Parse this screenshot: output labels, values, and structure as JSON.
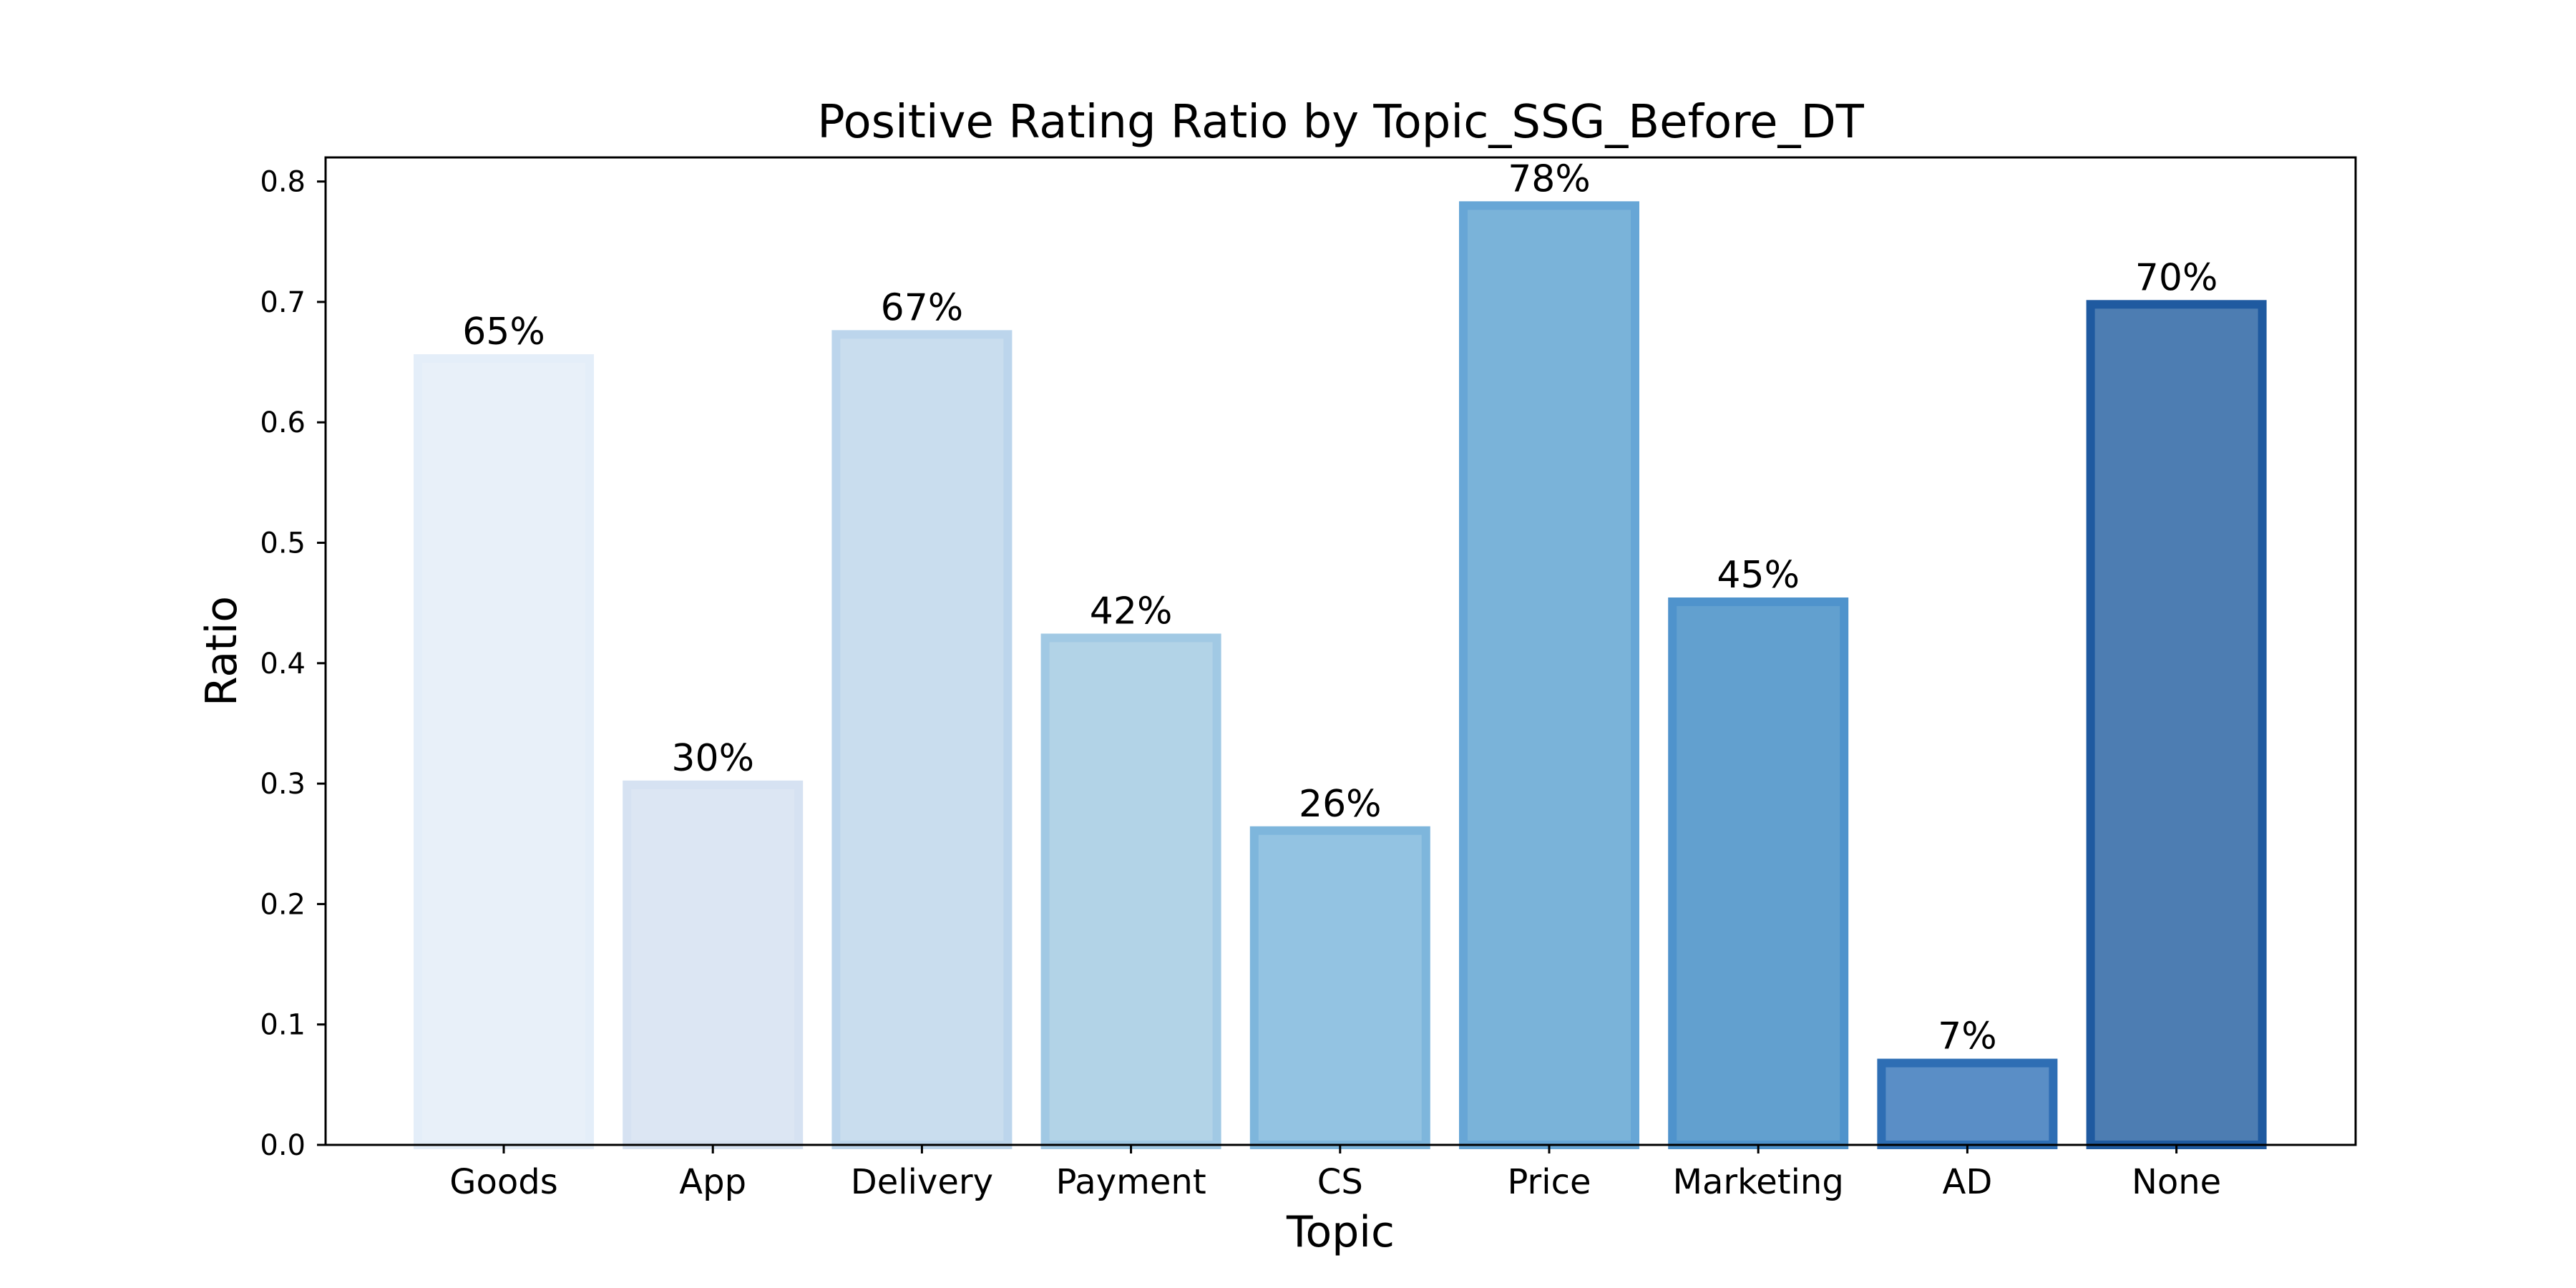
{
  "chart_data": {
    "type": "bar",
    "title": "Positive Rating Ratio by Topic_SSG_Before_DT",
    "xlabel": "Topic",
    "ylabel": "Ratio",
    "categories": [
      "Goods",
      "App",
      "Delivery",
      "Payment",
      "CS",
      "Price",
      "Marketing",
      "AD",
      "None"
    ],
    "values": [
      0.653,
      0.299,
      0.673,
      0.421,
      0.261,
      0.78,
      0.451,
      0.068,
      0.698
    ],
    "data_labels": [
      "65%",
      "30%",
      "67%",
      "42%",
      "26%",
      "78%",
      "45%",
      "7%",
      "70%"
    ],
    "ylim": [
      0,
      0.82
    ],
    "yticks": [
      0.0,
      0.1,
      0.2,
      0.3,
      0.4,
      0.5,
      0.6,
      0.7,
      0.8
    ],
    "ytick_labels": [
      "0.0",
      "0.1",
      "0.2",
      "0.3",
      "0.4",
      "0.5",
      "0.6",
      "0.7",
      "0.8"
    ],
    "grid": false,
    "colors": {
      "fill": [
        "#e8f0f9",
        "#dce6f3",
        "#c9ddee",
        "#b2d3e7",
        "#93c3e2",
        "#7ab3d9",
        "#62a0cf",
        "#5a8ec6",
        "#4d7db2"
      ],
      "edge": [
        "#e4eef9",
        "#d6e2f2",
        "#bcd5ec",
        "#a1c9e4",
        "#7eb6dc",
        "#67a6d6",
        "#4f93cc",
        "#2e6eb4",
        "#1f5aa0"
      ]
    }
  }
}
